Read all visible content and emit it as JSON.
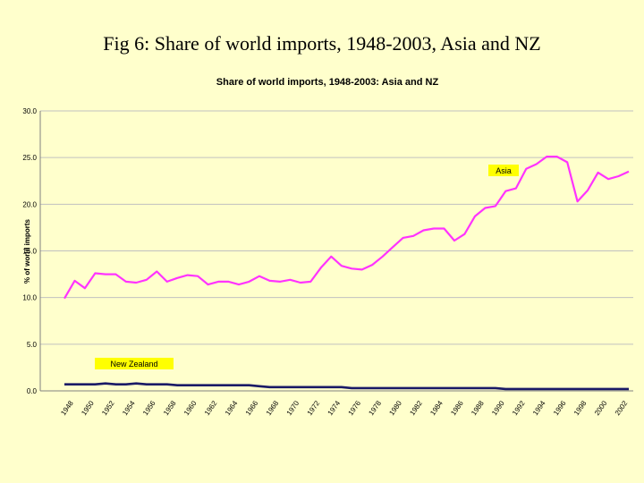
{
  "slide_title": "Fig 6:  Share of world imports, 1948-2003, Asia and NZ",
  "chart_data": {
    "type": "line",
    "title": "Share of world imports, 1948-2003: Asia and NZ",
    "xlabel": "",
    "ylabel": "% of world imports",
    "ylim": [
      0,
      30
    ],
    "yticks": [
      "0.0",
      "5.0",
      "10.0",
      "15.0",
      "20.0",
      "25.0",
      "30.0"
    ],
    "grid": true,
    "colors": {
      "asia": "#ff33ff",
      "nz": "#1a1a66",
      "label_bg": "#ffff00",
      "grid": "#c0c0c0"
    },
    "x_tick_labels": [
      "1948",
      "1950",
      "1952",
      "1954",
      "1956",
      "1958",
      "1960",
      "1962",
      "1964",
      "1966",
      "1968",
      "1970",
      "1972",
      "1974",
      "1976",
      "1978",
      "1980",
      "1982",
      "1984",
      "1986",
      "1988",
      "1990",
      "1992",
      "1994",
      "1996",
      "1998",
      "2000",
      "2002"
    ],
    "x": [
      1948,
      1949,
      1950,
      1951,
      1952,
      1953,
      1954,
      1955,
      1956,
      1957,
      1958,
      1959,
      1960,
      1961,
      1962,
      1963,
      1964,
      1965,
      1966,
      1967,
      1968,
      1969,
      1970,
      1971,
      1972,
      1973,
      1974,
      1975,
      1976,
      1977,
      1978,
      1979,
      1980,
      1981,
      1982,
      1983,
      1984,
      1985,
      1986,
      1987,
      1988,
      1989,
      1990,
      1991,
      1992,
      1993,
      1994,
      1995,
      1996,
      1997,
      1998,
      1999,
      2000,
      2001,
      2002,
      2003
    ],
    "series": [
      {
        "name": "Asia",
        "values": [
          9.9,
          11.8,
          11.0,
          12.6,
          12.5,
          12.5,
          11.7,
          11.6,
          11.9,
          12.8,
          11.7,
          12.1,
          12.4,
          12.3,
          11.4,
          11.7,
          11.7,
          11.4,
          11.7,
          12.3,
          11.8,
          11.7,
          11.9,
          11.6,
          11.7,
          13.2,
          14.4,
          13.4,
          13.1,
          13.0,
          13.5,
          14.4,
          15.4,
          16.4,
          16.6,
          17.2,
          17.4,
          17.4,
          16.1,
          16.8,
          18.7,
          19.6,
          19.8,
          21.4,
          21.7,
          23.8,
          24.3,
          25.1,
          25.1,
          24.5,
          20.3,
          21.5,
          23.4,
          22.7,
          23.0,
          23.5
        ]
      },
      {
        "name": "New Zealand",
        "values": [
          0.7,
          0.7,
          0.7,
          0.7,
          0.8,
          0.7,
          0.7,
          0.8,
          0.7,
          0.7,
          0.7,
          0.6,
          0.6,
          0.6,
          0.6,
          0.6,
          0.6,
          0.6,
          0.6,
          0.5,
          0.4,
          0.4,
          0.4,
          0.4,
          0.4,
          0.4,
          0.4,
          0.4,
          0.3,
          0.3,
          0.3,
          0.3,
          0.3,
          0.3,
          0.3,
          0.3,
          0.3,
          0.3,
          0.3,
          0.3,
          0.3,
          0.3,
          0.3,
          0.2,
          0.2,
          0.2,
          0.2,
          0.2,
          0.2,
          0.2,
          0.2,
          0.2,
          0.2,
          0.2,
          0.2,
          0.2
        ]
      }
    ],
    "annotations": [
      {
        "series": "Asia",
        "text": "Asia"
      },
      {
        "series": "New Zealand",
        "text": "New Zealand"
      }
    ]
  }
}
